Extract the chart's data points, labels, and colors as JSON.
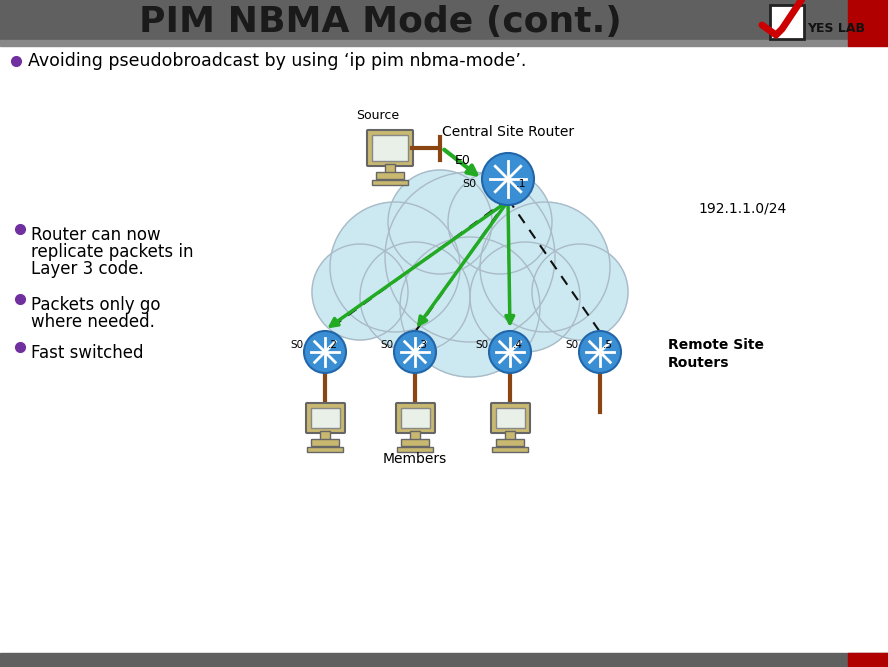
{
  "title": "PIM NBMA Mode (cont.)",
  "bg_color": "#ffffff",
  "header_bar_color": "#606060",
  "header_bar_red": "#b00000",
  "title_color": "#1a1a1a",
  "bullet_color": "#7030a0",
  "bullet1": "Avoiding pseudobroadcast by using ‘ip pim nbma-mode’.",
  "bullet2": "Router can now",
  "bullet2b": "replicate packets in",
  "bullet2c": "Layer 3 code.",
  "bullet3": "Packets only go",
  "bullet3b": "where needed.",
  "bullet4": "Fast switched",
  "central_router_label": "Central Site Router",
  "source_label": "Source",
  "e0_label": "E0",
  "subnet_label": "192.1.1.0/24",
  "members_label": "Members",
  "remote_label": "Remote Site",
  "remote_label2": "Routers",
  "cloud_color": "#cce8f0",
  "cloud_edge_color": "#aabbc8",
  "router_blue": "#3a8fd4",
  "router_blue_dark": "#2266aa",
  "arrow_green": "#22aa22",
  "connection_brown": "#8B4513",
  "bottom_bar_color": "#606060",
  "yes_lab_color": "#cc0000"
}
